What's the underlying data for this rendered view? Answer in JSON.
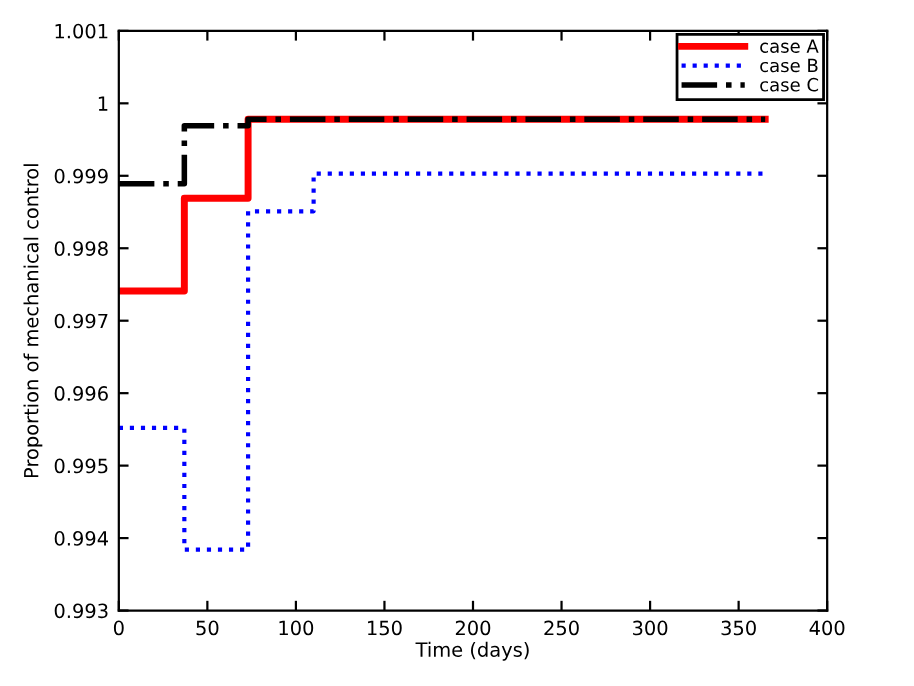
{
  "chart_data": {
    "type": "step",
    "xlabel": "Time (days)",
    "ylabel": "Proportion of mechanical control",
    "series": [
      {
        "name": "case A",
        "color": "#ff0000",
        "line_style": "solid",
        "x": [
          0,
          37,
          73,
          365
        ],
        "values": [
          0.99741,
          0.99869,
          0.99978,
          0.99978
        ]
      },
      {
        "name": "case B",
        "color": "#0000ff",
        "line_style": "dotted",
        "x": [
          0,
          37,
          73,
          110,
          365
        ],
        "values": [
          0.99552,
          0.99384,
          0.99851,
          0.99903,
          0.99903
        ]
      },
      {
        "name": "case C",
        "color": "#000000",
        "line_style": "dashdot",
        "x": [
          0,
          37,
          73,
          365
        ],
        "values": [
          0.99889,
          0.99969,
          0.99978,
          0.99978
        ]
      }
    ],
    "xlim": [
      0,
      400
    ],
    "xticks": [
      0,
      50,
      100,
      150,
      200,
      250,
      300,
      350,
      400
    ],
    "ylim": [
      0.993,
      1.001
    ],
    "yticks": [
      0.993,
      0.994,
      0.995,
      0.996,
      0.997,
      0.998,
      0.999,
      1,
      1.001
    ],
    "legend": "top right",
    "grid": false
  }
}
